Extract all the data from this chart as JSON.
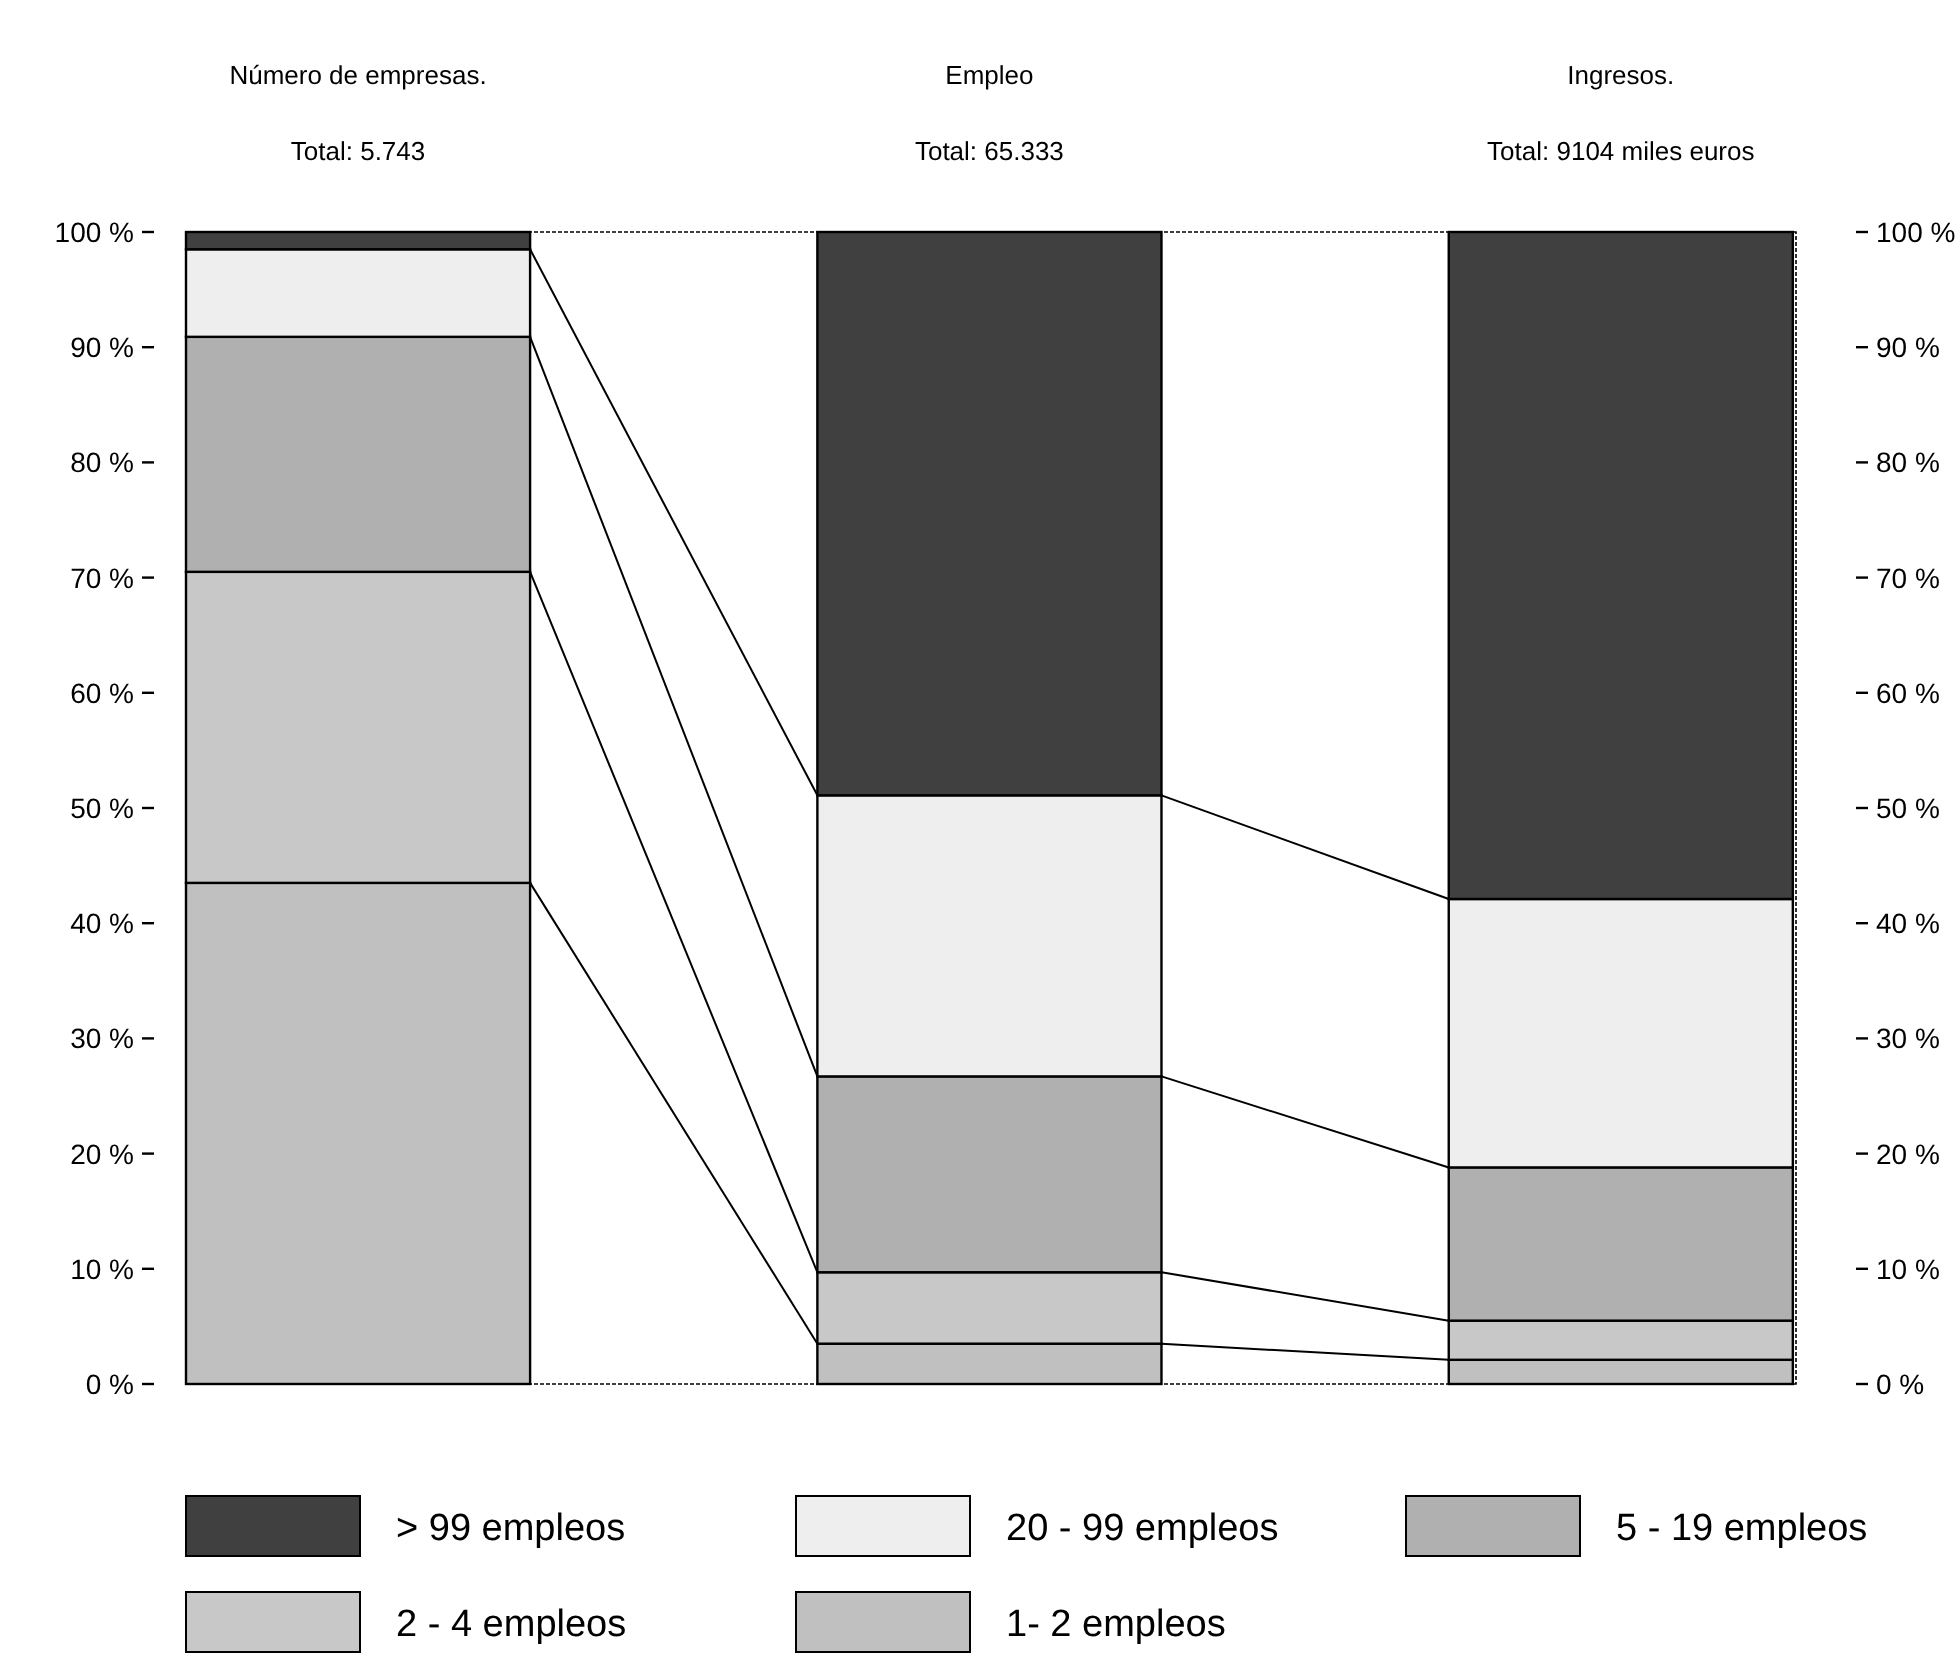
{
  "chart_data": {
    "type": "bar",
    "stacked": true,
    "categories": [
      "Número de empresas.",
      "Empleo",
      "Ingresos."
    ],
    "annotations": [
      "Total: 5.743",
      "Total: 65.333",
      "Total: 9104 miles euros"
    ],
    "series": [
      {
        "name": "1- 2 empleos",
        "color": "#c0c0c0",
        "values": [
          43.5,
          3.5,
          2.1
        ]
      },
      {
        "name": "2 - 4 empleos",
        "color": "#c8c8c8",
        "values": [
          27.0,
          6.2,
          3.4
        ]
      },
      {
        "name": "5 - 19 empleos",
        "color": "#b0b0b0",
        "values": [
          20.4,
          17.0,
          13.3
        ]
      },
      {
        "name": "20 - 99 empleos",
        "color": "#eeeeee",
        "values": [
          7.6,
          24.4,
          23.3
        ]
      },
      {
        "name": "> 99 empleos",
        "color": "#404040",
        "values": [
          1.5,
          48.9,
          57.9
        ]
      }
    ],
    "ylim": [
      0,
      100
    ],
    "yticks": [
      {
        "value": 0,
        "label": "0 %"
      },
      {
        "value": 10,
        "label": "10 %"
      },
      {
        "value": 20,
        "label": "20 %"
      },
      {
        "value": 30,
        "label": "30 %"
      },
      {
        "value": 40,
        "label": "40 %"
      },
      {
        "value": 50,
        "label": "50 %"
      },
      {
        "value": 60,
        "label": "60 %"
      },
      {
        "value": 70,
        "label": "70 %"
      },
      {
        "value": 80,
        "label": "80 %"
      },
      {
        "value": 90,
        "label": "90 %"
      },
      {
        "value": 100,
        "label": "100 %"
      }
    ],
    "y2lim": [
      0,
      100
    ],
    "y2ticks": [
      {
        "value": 0,
        "label": "0 %"
      },
      {
        "value": 10,
        "label": "10 %"
      },
      {
        "value": 20,
        "label": "20 %"
      },
      {
        "value": 30,
        "label": "30 %"
      },
      {
        "value": 40,
        "label": "40 %"
      },
      {
        "value": 50,
        "label": "50 %"
      },
      {
        "value": 60,
        "label": "60 %"
      },
      {
        "value": 70,
        "label": "70 %"
      },
      {
        "value": 80,
        "label": "80 %"
      },
      {
        "value": 90,
        "label": "90 %"
      },
      {
        "value": 100,
        "label": "100 %"
      }
    ],
    "grid": false,
    "legend": "bottom"
  }
}
